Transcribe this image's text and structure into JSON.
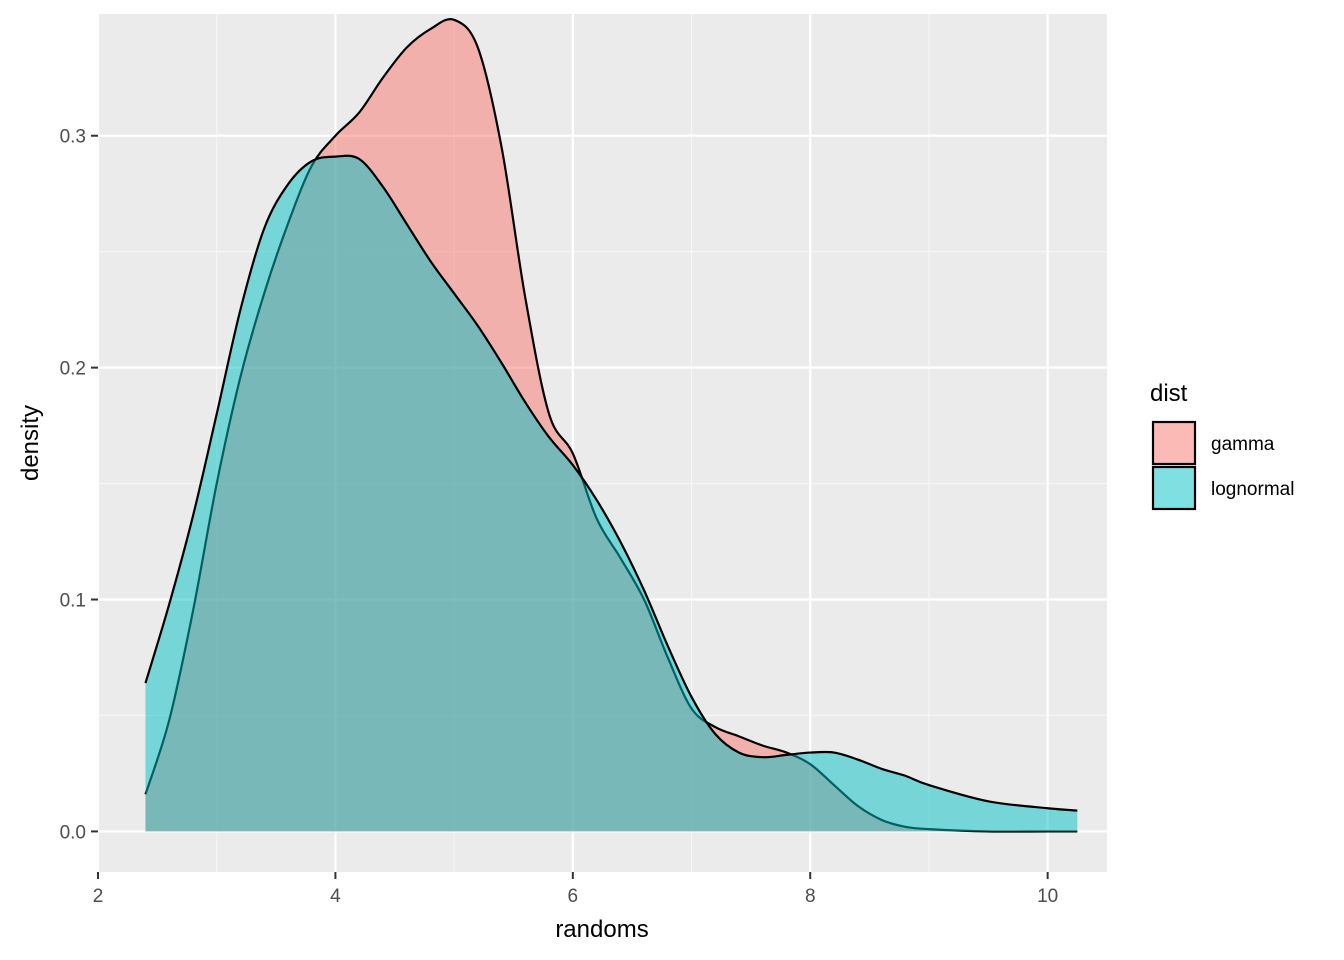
{
  "chart_data": {
    "type": "area",
    "title": "",
    "xlabel": "randoms",
    "ylabel": "density",
    "xlim": [
      2,
      10.5
    ],
    "ylim": [
      -0.0175,
      0.3525
    ],
    "xticks": [
      2,
      4,
      6,
      8,
      10
    ],
    "yticks": [
      0.0,
      0.1,
      0.2,
      0.3
    ],
    "ytick_labels": [
      "0.0",
      "0.1",
      "0.2",
      "0.3"
    ],
    "grid": true,
    "legend": {
      "title": "dist",
      "position": "right"
    },
    "series": [
      {
        "name": "gamma",
        "color": "#F8766D",
        "x": [
          2.4,
          2.6,
          2.8,
          3.0,
          3.2,
          3.4,
          3.6,
          3.8,
          4.0,
          4.2,
          4.4,
          4.6,
          4.8,
          5.0,
          5.2,
          5.4,
          5.6,
          5.8,
          6.0,
          6.2,
          6.4,
          6.6,
          6.8,
          7.0,
          7.2,
          7.4,
          7.6,
          7.8,
          8.0,
          8.2,
          8.4,
          8.6,
          8.8,
          9.0,
          9.5,
          10.0,
          10.25
        ],
        "y": [
          0.016,
          0.048,
          0.095,
          0.15,
          0.196,
          0.232,
          0.262,
          0.287,
          0.3,
          0.31,
          0.325,
          0.338,
          0.346,
          0.35,
          0.338,
          0.295,
          0.23,
          0.18,
          0.163,
          0.135,
          0.118,
          0.1,
          0.075,
          0.053,
          0.045,
          0.041,
          0.037,
          0.034,
          0.029,
          0.02,
          0.011,
          0.005,
          0.002,
          0.001,
          0.0,
          0.0,
          0.0
        ]
      },
      {
        "name": "lognormal",
        "color": "#00BFC4",
        "x": [
          2.4,
          2.6,
          2.8,
          3.0,
          3.2,
          3.4,
          3.6,
          3.8,
          4.0,
          4.2,
          4.4,
          4.6,
          4.8,
          5.0,
          5.2,
          5.4,
          5.6,
          5.8,
          6.0,
          6.2,
          6.4,
          6.6,
          6.8,
          7.0,
          7.2,
          7.4,
          7.6,
          7.8,
          8.0,
          8.2,
          8.4,
          8.6,
          8.8,
          9.0,
          9.5,
          10.0,
          10.25
        ],
        "y": [
          0.064,
          0.098,
          0.136,
          0.18,
          0.225,
          0.26,
          0.279,
          0.289,
          0.291,
          0.29,
          0.278,
          0.262,
          0.246,
          0.232,
          0.218,
          0.202,
          0.185,
          0.17,
          0.158,
          0.143,
          0.125,
          0.104,
          0.08,
          0.058,
          0.042,
          0.034,
          0.032,
          0.033,
          0.034,
          0.034,
          0.031,
          0.027,
          0.024,
          0.02,
          0.013,
          0.01,
          0.009
        ]
      }
    ]
  }
}
